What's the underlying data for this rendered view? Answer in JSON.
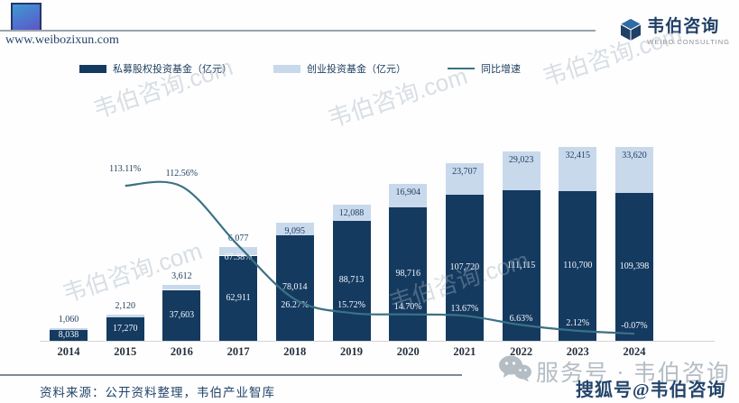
{
  "header": {
    "url": "www.weibozixun.com",
    "logo": {
      "name": "韦伯咨询",
      "sub": "WEIBO CONSULTING"
    }
  },
  "chart_data": {
    "type": "bar",
    "subtype": "stacked-bar-with-line",
    "categories": [
      "2014",
      "2015",
      "2016",
      "2017",
      "2018",
      "2019",
      "2020",
      "2021",
      "2022",
      "2023",
      "2024"
    ],
    "series": [
      {
        "name": "私募股权投资基金（亿元）",
        "type": "bar",
        "color": "#143a60",
        "values": [
          8038,
          17270,
          37603,
          62911,
          78014,
          88713,
          98716,
          107720,
          111115,
          110700,
          109398
        ],
        "labels": [
          "8,038",
          "17,270",
          "37,603",
          "62,911",
          "78,014",
          "88,713",
          "98,716",
          "107,720",
          "111,115",
          "110,700",
          "109,398"
        ]
      },
      {
        "name": "创业投资基金（亿元）",
        "type": "bar",
        "color": "#c9d9ec",
        "values": [
          1060,
          2120,
          3612,
          6077,
          9095,
          12088,
          16904,
          23707,
          29023,
          32415,
          33620
        ],
        "labels": [
          "1,060",
          "2,120",
          "3,612",
          "6,077",
          "9,095",
          "12,088",
          "16,904",
          "23,707",
          "29,023",
          "32,415",
          "33,620"
        ]
      },
      {
        "name": "同比增速",
        "type": "line",
        "color": "#3b7185",
        "values": [
          null,
          113.11,
          112.56,
          67.38,
          26.27,
          15.72,
          14.7,
          13.67,
          6.63,
          2.12,
          -0.07
        ],
        "labels": [
          "",
          "113.11%",
          "112.56%",
          "67.38%",
          "26.27%",
          "15.72%",
          "14.70%",
          "13.67%",
          "6.63%",
          "2.12%",
          "-0.07%"
        ]
      }
    ],
    "legend_position": "top",
    "grid": false,
    "xlabel": "",
    "ylabel": ""
  },
  "watermark": {
    "text": "韦伯咨询.com"
  },
  "footer": {
    "source": "资料来源：公开资料整理，韦伯产业智库",
    "service_account": "服务号 · 韦伯咨询",
    "sohu_account": "搜狐号@韦伯咨询"
  }
}
